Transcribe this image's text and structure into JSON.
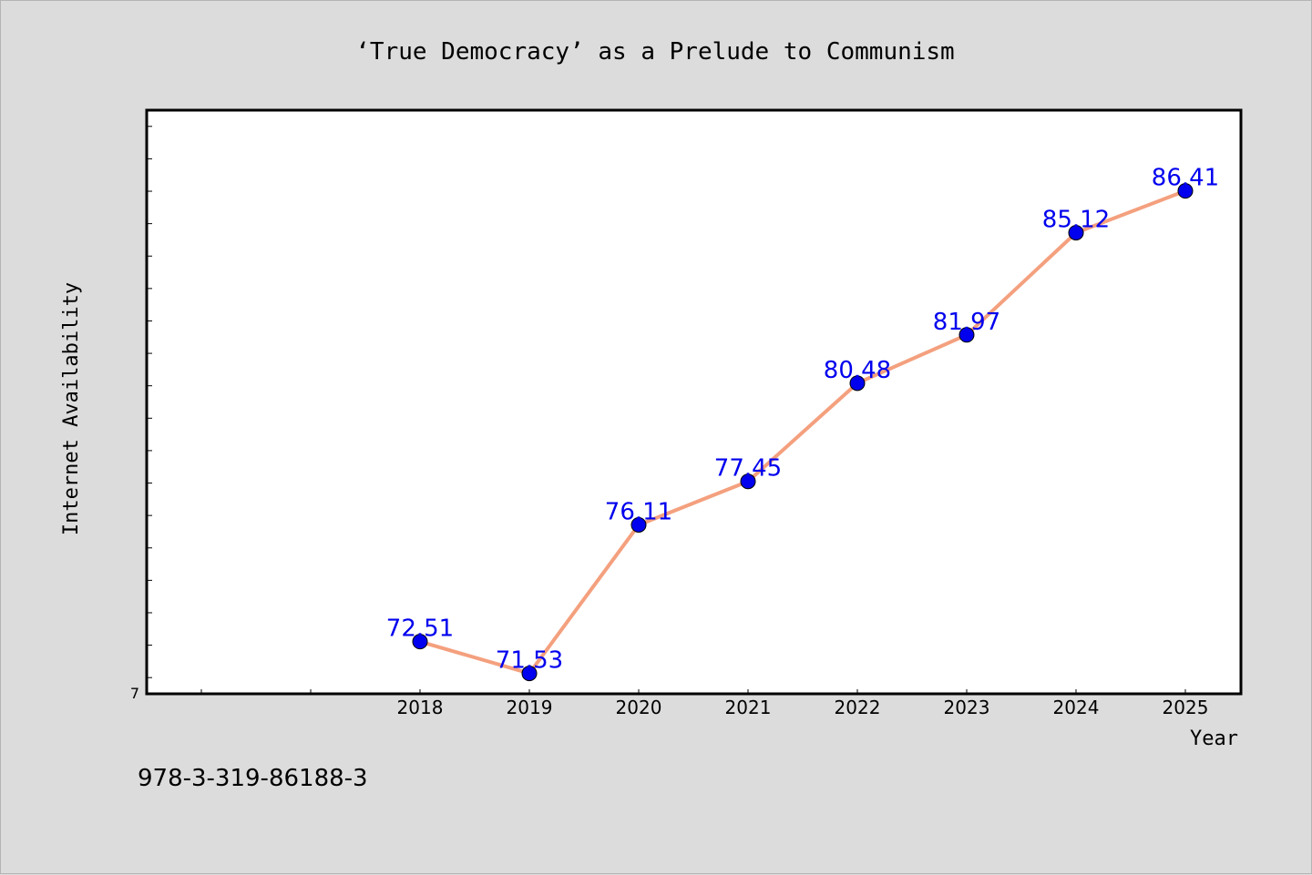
{
  "chart_data": {
    "type": "line",
    "title": "‘True Democracy’ as a Prelude to Communism",
    "xlabel": "Year",
    "ylabel": "Internet Availability",
    "categories": [
      "2018",
      "2019",
      "2020",
      "2021",
      "2022",
      "2023",
      "2024",
      "2025"
    ],
    "series": [
      {
        "values": [
          72.51,
          71.53,
          76.11,
          77.45,
          80.48,
          81.97,
          85.12,
          86.41
        ],
        "labels": [
          "72.51",
          "71.53",
          "76.11",
          "77.45",
          "80.48",
          "81.97",
          "85.12",
          "86.41"
        ]
      }
    ],
    "ylim": [
      70.9,
      88.9
    ],
    "y_min_label": "7",
    "grid": false,
    "line_color": "#f4a07e",
    "marker_color": "#0000ee"
  },
  "footer": {
    "isbn": "978-3-319-86188-3"
  }
}
